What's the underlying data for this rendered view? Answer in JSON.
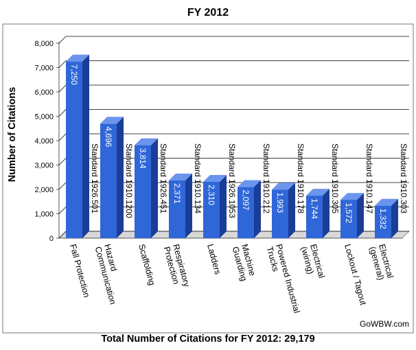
{
  "title": "FY 2012",
  "footer": "Total Number of Citations for FY 2012: 29,179",
  "watermark": "GoWBW.com",
  "colors": {
    "bar_front": "#2f66d8",
    "bar_side": "#1a3d96",
    "bar_top": "#6b95ec",
    "grid": "#000000",
    "floor": "#d8d8d8"
  },
  "chart_data": {
    "type": "bar",
    "title": "FY 2012",
    "xlabel": "",
    "ylabel": "Number of Citations",
    "ylim": [
      0,
      8000
    ],
    "yticks": [
      0,
      1000,
      2000,
      3000,
      4000,
      5000,
      6000,
      7000,
      8000
    ],
    "ytick_labels": [
      "0",
      "1,000",
      "2,000",
      "3,000",
      "4,000",
      "5,000",
      "6,000",
      "7,000",
      "8,000"
    ],
    "grid": true,
    "categories": [
      "Fall Protection",
      "Hazard Communication",
      "Scaffolding",
      "Respiratory Protection",
      "Ladders",
      "Machine Guarding",
      "Powered Industrial Trucks",
      "Electrical (wiring)",
      "Lockout / Tagout",
      "Electrical (general)"
    ],
    "category_lines": [
      [
        "Fall Protection"
      ],
      [
        "Hazard",
        "Communication"
      ],
      [
        "Scaffolding"
      ],
      [
        "Respiratory",
        "Protection"
      ],
      [
        "Ladders"
      ],
      [
        "Machine",
        "Guarding"
      ],
      [
        "Powered Industrial",
        "Trucks"
      ],
      [
        "Electrical",
        "(wiring)"
      ],
      [
        "Lockout / Tagout"
      ],
      [
        "Electrical",
        "(general)"
      ]
    ],
    "values": [
      7250,
      4696,
      3814,
      2371,
      2310,
      2097,
      1993,
      1744,
      1572,
      1332
    ],
    "value_labels": [
      "7,250",
      "4,696",
      "3,814",
      "2,371",
      "2,310",
      "2,097",
      "1,993",
      "1,744",
      "1,572",
      "1,332"
    ],
    "standards": [
      "Standard 1926.501",
      "Standard 1910.1200",
      "Standard 1926.451",
      "Standard 1910.134",
      "Standard 1926.1053",
      "Standard 1910.212",
      "Standard 1910.178",
      "Standard 1910.305",
      "Standard 1910.147",
      "Standard 1910.303"
    ]
  }
}
